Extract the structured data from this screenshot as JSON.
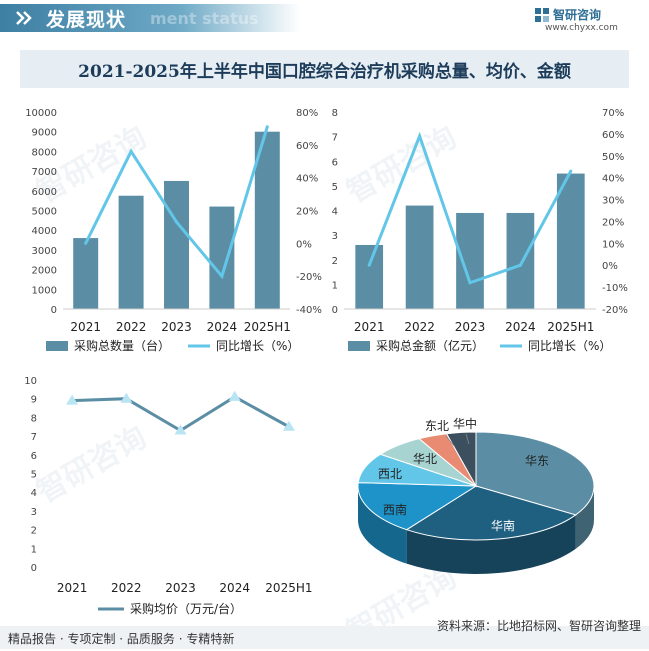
{
  "header": {
    "title": "发展现状",
    "ghost": "ment status"
  },
  "logo": {
    "name": "智研咨询",
    "url": "www.chyxx.com"
  },
  "watermark": "智研咨询",
  "footer": {
    "left": "精品报告 · 专项定制 · 品质服务 · 专精特新",
    "source": "资料来源：比地招标网、智研咨询整理"
  },
  "colors": {
    "bar": "#5b8ea5",
    "line": "#62c6e8",
    "price_line": "#5b8ea5",
    "price_marker": "#b8e4f3"
  },
  "chart_data": [
    {
      "type": "bar",
      "title": "2021-2025年上半年中国口腔综合治疗机采购总量、均价、金额",
      "categories": [
        "2021",
        "2022",
        "2023",
        "2024",
        "2025H1"
      ],
      "series": [
        {
          "name": "采购总数量（台）",
          "type": "bar",
          "axis": "left",
          "values": [
            3600,
            5750,
            6500,
            5200,
            9000
          ]
        },
        {
          "name": "同比增长（%）",
          "type": "line",
          "axis": "right",
          "values": [
            0.0,
            0.56,
            0.13,
            -0.2,
            0.71
          ]
        }
      ],
      "y_left": {
        "min": 0,
        "max": 10000,
        "step": 1000
      },
      "y_right": {
        "min": -0.4,
        "max": 0.8,
        "step": 0.2,
        "tick_labels": [
          "-40%",
          "-20%",
          "0%",
          "20%",
          "40%",
          "60%",
          "80%"
        ]
      },
      "legend": "bottom"
    },
    {
      "type": "bar",
      "categories": [
        "2021",
        "2022",
        "2023",
        "2024",
        "2025H1"
      ],
      "series": [
        {
          "name": "采购总金额（亿元）",
          "type": "bar",
          "axis": "left",
          "values": [
            2.6,
            4.2,
            3.9,
            3.9,
            5.5
          ]
        },
        {
          "name": "同比增长（%）",
          "type": "line",
          "axis": "right",
          "values": [
            0.0,
            0.59,
            -0.08,
            0.0,
            0.43
          ]
        }
      ],
      "y_left": {
        "min": 0,
        "max": 8,
        "step": 1
      },
      "y_right": {
        "min": -0.2,
        "max": 0.7,
        "step": 0.1,
        "tick_labels": [
          "-20%",
          "-10%",
          "0%",
          "10%",
          "20%",
          "30%",
          "40%",
          "50%",
          "60%",
          "70%"
        ]
      },
      "legend": "bottom"
    },
    {
      "type": "line",
      "categories": [
        "2021",
        "2022",
        "2023",
        "2024",
        "2025H1"
      ],
      "series": [
        {
          "name": "采购均价（万元/台）",
          "values": [
            8.9,
            9.0,
            7.3,
            9.1,
            7.5
          ]
        }
      ],
      "y": {
        "min": 0,
        "max": 10,
        "step": 1
      },
      "legend": "bottom"
    },
    {
      "type": "pie",
      "style": "3d",
      "slices": [
        {
          "label": "华东",
          "value": 34,
          "color": "#5b8ea5"
        },
        {
          "label": "华南",
          "value": 26,
          "color": "#1f5f80"
        },
        {
          "label": "西南",
          "value": 16,
          "color": "#1e93c9"
        },
        {
          "label": "西北",
          "value": 9,
          "color": "#62c6e8"
        },
        {
          "label": "华北",
          "value": 7,
          "color": "#a7d3d0"
        },
        {
          "label": "东北",
          "value": 4,
          "color": "#e98b73"
        },
        {
          "label": "华中",
          "value": 4,
          "color": "#3b4f5e"
        }
      ]
    }
  ]
}
